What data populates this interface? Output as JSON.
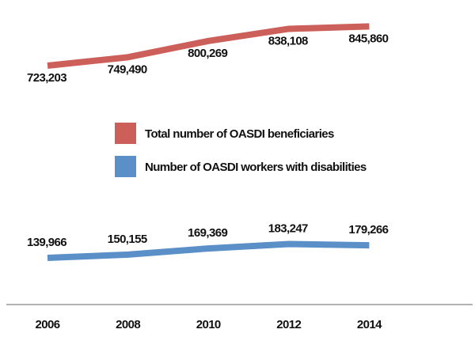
{
  "chart_data": {
    "type": "line",
    "title": "",
    "xlabel": "",
    "ylabel": "",
    "categories": [
      "2006",
      "2008",
      "2010",
      "2012",
      "2014"
    ],
    "grid": false,
    "legend_placement": "center",
    "series": [
      {
        "name": "Total number of OASDI beneficiaries",
        "color": "#cd5f5b",
        "values": [
          723203,
          749490,
          800269,
          838108,
          845860
        ],
        "labels": [
          "723,203",
          "749,490",
          "800,269",
          "838,108",
          "845,860"
        ]
      },
      {
        "name": "Number of OASDI workers with disabilities",
        "color": "#5b8fc7",
        "values": [
          139966,
          150155,
          169369,
          183247,
          179266
        ],
        "labels": [
          "139,966",
          "150,155",
          "169,369",
          "183,247",
          "179,266"
        ]
      }
    ]
  }
}
